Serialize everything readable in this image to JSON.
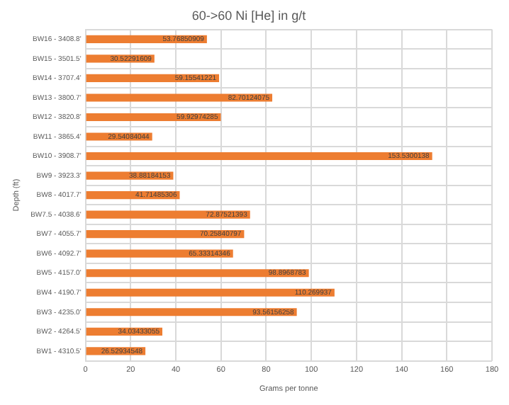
{
  "chart_data": {
    "type": "bar",
    "orientation": "horizontal",
    "title": "60->60 Ni [He] in g/t",
    "xlabel": "Grams per tonne",
    "ylabel": "Depth (ft)",
    "categories": [
      "BW16 - 3408.8'",
      "BW15 - 3501.5'",
      "BW14 - 3707.4'",
      "BW13 - 3800.7'",
      "BW12 - 3820.8'",
      "BW11 - 3865.4'",
      "BW10 - 3908.7'",
      "BW9 - 3923.3'",
      "BW8 - 4017.7'",
      "BW7.5 - 4038.6'",
      "BW7 - 4055.7'",
      "BW6 - 4092.7'",
      "BW5 - 4157.0'",
      "BW4 - 4190.7'",
      "BW3 - 4235.0'",
      "BW2 - 4264.5'",
      "BW1 - 4310.5'"
    ],
    "values": [
      53.76850909,
      30.52291609,
      59.15541221,
      82.70124075,
      59.92974285,
      29.54084044,
      153.5300138,
      38.88184153,
      41.71485306,
      72.87521393,
      70.25840797,
      65.33314346,
      98.8968783,
      110.269937,
      93.56156258,
      34.03433055,
      26.52934548
    ],
    "color": "#ed7d31",
    "xlim": [
      0,
      180
    ],
    "xticks": [
      0,
      20,
      40,
      60,
      80,
      100,
      120,
      140,
      160,
      180
    ],
    "grid": true,
    "data_labels": true
  }
}
